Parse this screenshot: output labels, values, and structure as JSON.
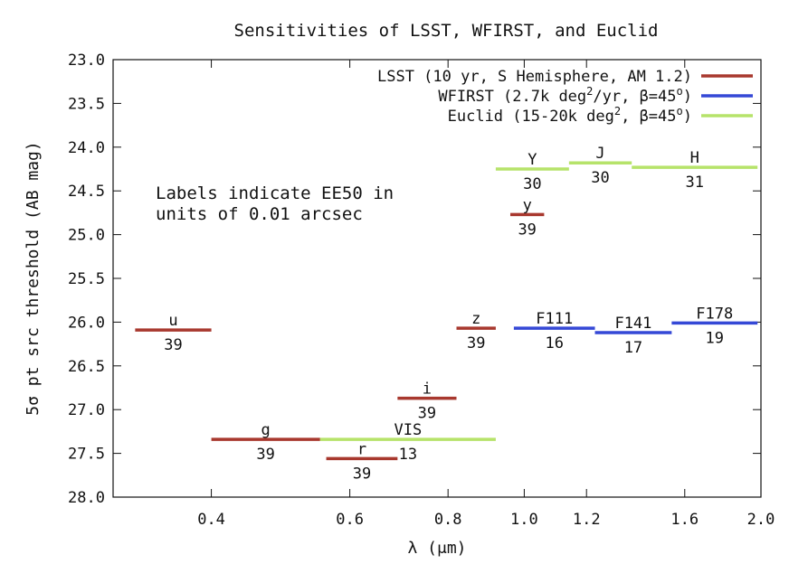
{
  "chart_data": {
    "type": "line",
    "title": "Sensitivities of LSST, WFIRST, and Euclid",
    "xlabel": "λ (μm)",
    "ylabel": "5σ pt src threshold (AB mag)",
    "x_scale": "log",
    "xlim": [
      0.3,
      2.0
    ],
    "ylim": [
      28.0,
      23.0
    ],
    "y_inverted": true,
    "x_ticks": [
      0.4,
      0.6,
      0.8,
      1.0,
      1.2,
      1.6,
      2.0
    ],
    "x_tick_labels": [
      "0.4",
      "0.6",
      "0.8",
      "1.0",
      "1.2",
      "1.6",
      "2.0"
    ],
    "y_ticks": [
      23.0,
      23.5,
      24.0,
      24.5,
      25.0,
      25.5,
      26.0,
      26.5,
      27.0,
      27.5,
      28.0
    ],
    "y_tick_labels": [
      "23.0",
      "23.5",
      "24.0",
      "24.5",
      "25.0",
      "25.5",
      "26.0",
      "26.5",
      "27.0",
      "27.5",
      "28.0"
    ],
    "legend_position": "top-right",
    "annotation": [
      "Labels indicate EE50 in",
      "units of 0.01 arcsec"
    ],
    "series": [
      {
        "name": "LSST (10 yr, S Hemisphere, AM 1.2)",
        "legend_parts": [
          "LSST (10 yr, S Hemisphere, AM 1.2)"
        ],
        "color": "#a8382e",
        "segments": [
          {
            "band": "u",
            "x_start": 0.32,
            "x_end": 0.4,
            "y": 26.09,
            "ee50": "39"
          },
          {
            "band": "g",
            "x_start": 0.4,
            "x_end": 0.55,
            "y": 27.34,
            "ee50": "39"
          },
          {
            "band": "r",
            "x_start": 0.56,
            "x_end": 0.69,
            "y": 27.56,
            "ee50": "39"
          },
          {
            "band": "i",
            "x_start": 0.69,
            "x_end": 0.82,
            "y": 26.87,
            "ee50": "39"
          },
          {
            "band": "z",
            "x_start": 0.82,
            "x_end": 0.92,
            "y": 26.07,
            "ee50": "39"
          },
          {
            "band": "y",
            "x_start": 0.96,
            "x_end": 1.06,
            "y": 24.77,
            "ee50": "39"
          }
        ]
      },
      {
        "name": "WFIRST (2.7k deg²/yr, β=45°)",
        "legend_parts": [
          "WFIRST (2.7k deg",
          "2",
          "/yr, β=45",
          "o",
          ")"
        ],
        "color": "#3548d6",
        "segments": [
          {
            "band": "F111",
            "x_start": 0.97,
            "x_end": 1.23,
            "y": 26.07,
            "ee50": "16"
          },
          {
            "band": "F141",
            "x_start": 1.23,
            "x_end": 1.54,
            "y": 26.12,
            "ee50": "17"
          },
          {
            "band": "F178",
            "x_start": 1.54,
            "x_end": 1.98,
            "y": 26.01,
            "ee50": "19"
          }
        ]
      },
      {
        "name": "Euclid (15-20k deg², β=45°)",
        "legend_parts": [
          "Euclid (15-20k deg",
          "2",
          ", β=45",
          "o",
          ")"
        ],
        "color": "#b6e36a",
        "segments": [
          {
            "band": "VIS",
            "x_start": 0.55,
            "x_end": 0.92,
            "y": 27.34,
            "ee50": "13"
          },
          {
            "band": "Y",
            "x_start": 0.92,
            "x_end": 1.14,
            "y": 24.25,
            "ee50": "30"
          },
          {
            "band": "J",
            "x_start": 1.14,
            "x_end": 1.37,
            "y": 24.18,
            "ee50": "30"
          },
          {
            "band": "H",
            "x_start": 1.37,
            "x_end": 1.98,
            "y": 24.23,
            "ee50": "31"
          }
        ]
      }
    ]
  }
}
